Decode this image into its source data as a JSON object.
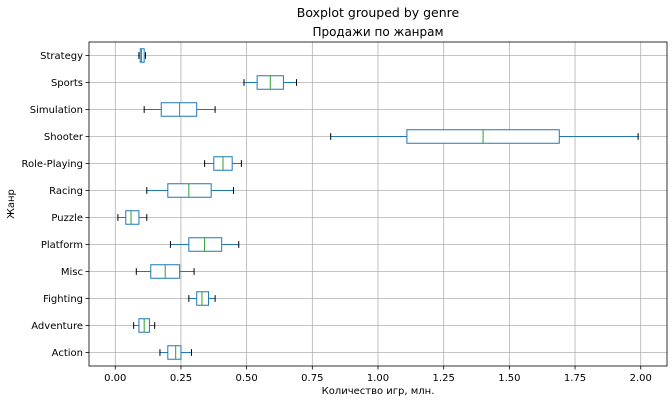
{
  "chart_data": {
    "type": "boxplot",
    "orientation": "horizontal",
    "suptitle": "Boxplot grouped by genre",
    "title": "Продажи по жанрам",
    "xlabel": "Количество игр, млн.",
    "ylabel": "Жанр",
    "xlim": [
      -0.1,
      2.1
    ],
    "xticks": [
      "0.00",
      "0.25",
      "0.50",
      "0.75",
      "1.00",
      "1.25",
      "1.50",
      "1.75",
      "2.00"
    ],
    "xtick_values": [
      0,
      0.25,
      0.5,
      0.75,
      1.0,
      1.25,
      1.5,
      1.75,
      2.0
    ],
    "grid": true,
    "colors": {
      "box": "#1f77b4",
      "median": "#2ca02c",
      "whisker": "#000000",
      "grid": "#b0b0b0"
    },
    "categories": [
      "Action",
      "Adventure",
      "Fighting",
      "Misc",
      "Platform",
      "Puzzle",
      "Racing",
      "Role-Playing",
      "Shooter",
      "Simulation",
      "Sports",
      "Strategy"
    ],
    "boxes": [
      {
        "whislo": 0.17,
        "q1": 0.2,
        "med": 0.23,
        "q3": 0.25,
        "whishi": 0.29
      },
      {
        "whislo": 0.07,
        "q1": 0.09,
        "med": 0.11,
        "q3": 0.13,
        "whishi": 0.15
      },
      {
        "whislo": 0.28,
        "q1": 0.31,
        "med": 0.33,
        "q3": 0.355,
        "whishi": 0.38
      },
      {
        "whislo": 0.08,
        "q1": 0.135,
        "med": 0.19,
        "q3": 0.245,
        "whishi": 0.3
      },
      {
        "whislo": 0.21,
        "q1": 0.28,
        "med": 0.34,
        "q3": 0.405,
        "whishi": 0.47
      },
      {
        "whislo": 0.01,
        "q1": 0.04,
        "med": 0.06,
        "q3": 0.09,
        "whishi": 0.12
      },
      {
        "whislo": 0.12,
        "q1": 0.2,
        "med": 0.28,
        "q3": 0.365,
        "whishi": 0.45
      },
      {
        "whislo": 0.34,
        "q1": 0.375,
        "med": 0.41,
        "q3": 0.445,
        "whishi": 0.48
      },
      {
        "whislo": 0.82,
        "q1": 1.11,
        "med": 1.4,
        "q3": 1.69,
        "whishi": 1.99
      },
      {
        "whislo": 0.11,
        "q1": 0.175,
        "med": 0.245,
        "q3": 0.31,
        "whishi": 0.38
      },
      {
        "whislo": 0.49,
        "q1": 0.54,
        "med": 0.59,
        "q3": 0.64,
        "whishi": 0.69
      },
      {
        "whislo": 0.09,
        "q1": 0.095,
        "med": 0.1,
        "q3": 0.11,
        "whishi": 0.115
      }
    ]
  }
}
